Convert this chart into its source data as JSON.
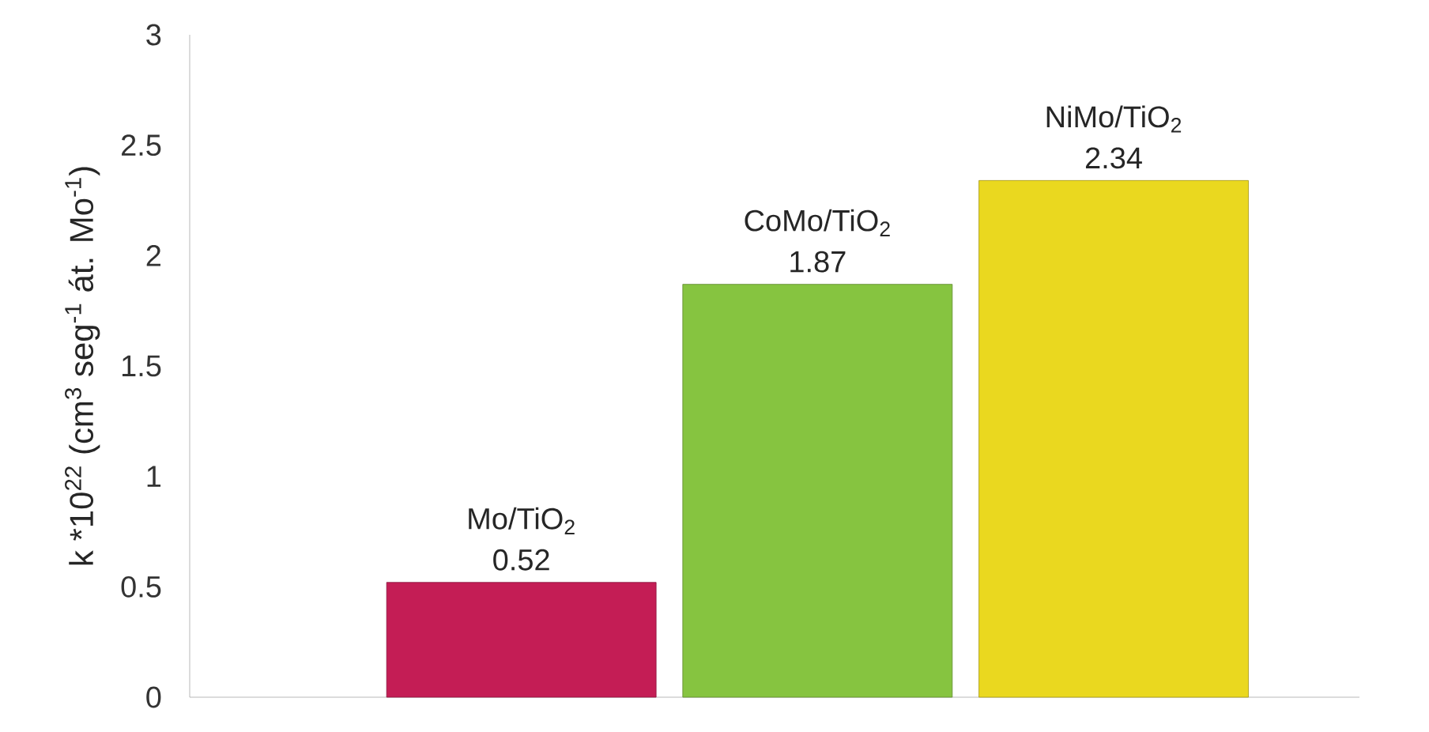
{
  "chart_data": {
    "type": "bar",
    "ylabel": "k  *10$^{22}$ (cm$^{3}$ seg$^{-1}$ át. Mo$^{-1}$)",
    "categories": [
      "Mo/TiO$_{2}$",
      "CoMo/TiO$_{2}$",
      "NiMo/TiO$_{2}$"
    ],
    "values": [
      0.52,
      1.87,
      2.34
    ],
    "colors": [
      "#c41d55",
      "#86c440",
      "#ead81f"
    ],
    "ylim": [
      0,
      3
    ],
    "yticks": [
      0,
      0.5,
      1,
      1.5,
      2,
      2.5,
      3
    ],
    "data_labels": true,
    "tick_labels": "y"
  }
}
